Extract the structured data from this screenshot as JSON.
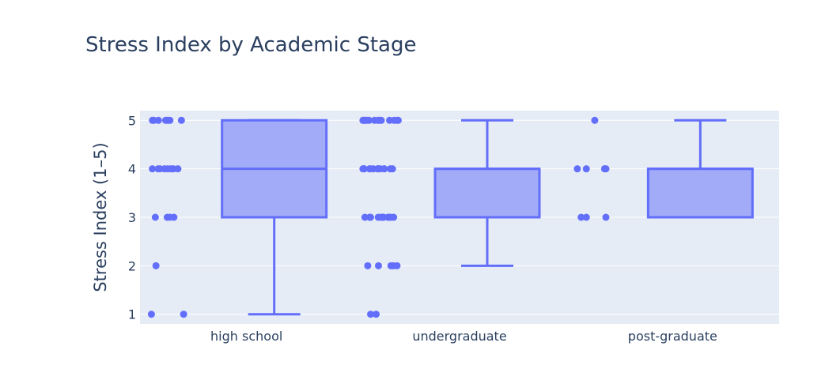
{
  "chart_data": {
    "type": "box",
    "title": "Stress Index by Academic Stage",
    "xlabel": "",
    "ylabel": "Stress Index (1–5)",
    "categories": [
      "high school",
      "undergraduate",
      "post-graduate"
    ],
    "ylim": [
      0.8,
      5.2
    ],
    "yticks": [
      1,
      2,
      3,
      4,
      5
    ],
    "grid": true,
    "colors": {
      "plot_bg": "#e5ecf6",
      "grid": "#ffffff",
      "box_fill": "#a1abf7",
      "box_line": "#636efa",
      "points": "#636efa",
      "text": "#2a3f5f"
    },
    "series": [
      {
        "category": "high school",
        "min": 1,
        "q1": 3,
        "median": 4,
        "q3": 5,
        "max": 5,
        "points": [
          {
            "y": 5,
            "count": 8
          },
          {
            "y": 4,
            "count": 8
          },
          {
            "y": 3,
            "count": 4
          },
          {
            "y": 2,
            "count": 1
          },
          {
            "y": 1,
            "count": 2
          }
        ]
      },
      {
        "category": "undergraduate",
        "min": 2,
        "q1": 3,
        "median": 4,
        "q3": 4,
        "max": 5,
        "points": [
          {
            "y": 5,
            "count": 14
          },
          {
            "y": 4,
            "count": 14
          },
          {
            "y": 3,
            "count": 14
          },
          {
            "y": 2,
            "count": 5
          },
          {
            "y": 1,
            "count": 2
          }
        ]
      },
      {
        "category": "post-graduate",
        "min": 3,
        "q1": 3,
        "median": 4,
        "q3": 4,
        "max": 5,
        "points": [
          {
            "y": 5,
            "count": 1
          },
          {
            "y": 4,
            "count": 4
          },
          {
            "y": 3,
            "count": 3
          }
        ]
      }
    ]
  }
}
